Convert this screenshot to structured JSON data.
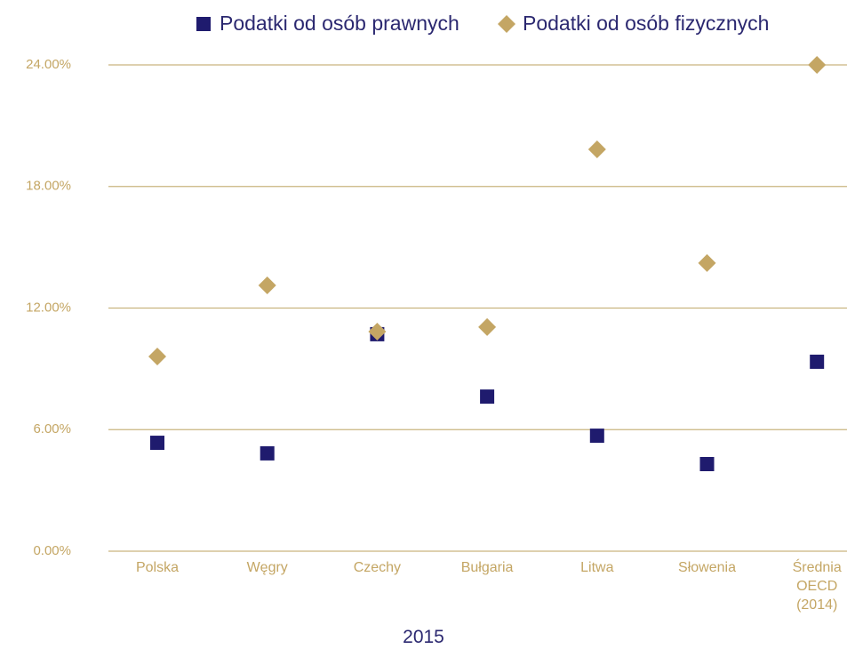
{
  "chart_data": {
    "type": "scatter",
    "xlabel": "2015",
    "categories": [
      "Polska",
      "Węgry",
      "Czechy",
      "Bułgaria",
      "Litwa",
      "Słowenia",
      "Średnia OECD (2014)"
    ],
    "series": [
      {
        "name": "Podatki od osób prawnych",
        "color": "#1f1b6e",
        "marker": "square",
        "values": [
          5.35,
          4.83,
          10.71,
          7.63,
          5.7,
          4.3,
          9.35
        ]
      },
      {
        "name": "Podatki od osób fizycznych",
        "color": "#c4a664",
        "marker": "diamond",
        "values": [
          9.61,
          13.12,
          10.84,
          11.06,
          19.83,
          14.22,
          24.0
        ]
      }
    ],
    "ylim": [
      0,
      24
    ],
    "yticks": [
      {
        "value": 0,
        "label": "0.00%"
      },
      {
        "value": 6,
        "label": "6.00%"
      },
      {
        "value": 12,
        "label": "12.00%"
      },
      {
        "value": 18,
        "label": "18.00%"
      },
      {
        "value": 24,
        "label": "24.00%"
      }
    ],
    "grid": true,
    "legend": "top"
  }
}
